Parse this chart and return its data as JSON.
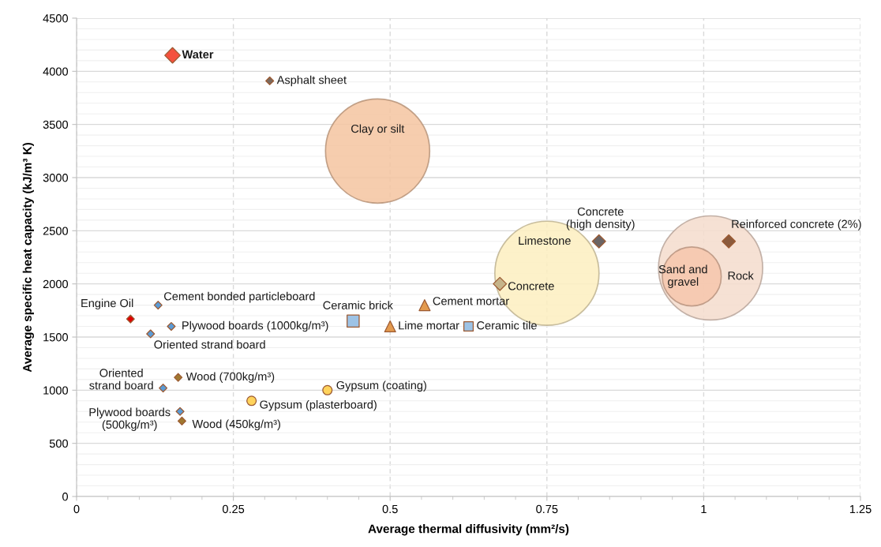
{
  "chart_data": {
    "type": "scatter",
    "xlabel": "Average thermal diffusivity (mm²/s)",
    "ylabel": "Average specific heat capacity (kJ/m³ K)",
    "xlim": [
      0,
      1.25
    ],
    "xticks": [
      0,
      0.25,
      0.5,
      0.75,
      1,
      1.25
    ],
    "ylim": [
      0,
      4500
    ],
    "yticks": [
      0,
      500,
      1000,
      1500,
      2000,
      2500,
      3000,
      3500,
      4000,
      4500
    ],
    "grid": true,
    "legend": false,
    "series": [
      {
        "name": "Water",
        "marker": "diamond",
        "color": "#f4513e",
        "x": [
          0.153
        ],
        "values": [
          4150
        ]
      },
      {
        "name": "Asphalt sheet",
        "marker": "diamond",
        "color": "#7a6a5f",
        "x": [
          0.308
        ],
        "values": [
          3910
        ]
      },
      {
        "name": "Clay or silt",
        "type": "bubble",
        "color": "#f4c4a0",
        "x": [
          0.48
        ],
        "values": [
          3250
        ],
        "sizes": [
          1
        ]
      },
      {
        "name": "Limestone",
        "type": "bubble",
        "color": "#fdefc0",
        "x": [
          0.75
        ],
        "values": [
          2100
        ],
        "sizes": [
          1
        ]
      },
      {
        "name": "Rock",
        "type": "bubble",
        "color": "#f5dccd",
        "x": [
          1.011
        ],
        "values": [
          2150
        ],
        "sizes": [
          1
        ]
      },
      {
        "name": "Sand and\ngravel",
        "type": "bubble",
        "color": "#f6c6ab",
        "x": [
          0.981
        ],
        "values": [
          2070
        ],
        "sizes": [
          0.32
        ]
      },
      {
        "name": "Concrete\n(high density)",
        "marker": "diamond",
        "color": "#6b6464",
        "x": [
          0.833
        ],
        "values": [
          2400
        ]
      },
      {
        "name": "Reinforced concrete (2%)",
        "marker": "diamond",
        "color": "#8b5a3c",
        "x": [
          1.04
        ],
        "values": [
          2400
        ]
      },
      {
        "name": "Concrete",
        "marker": "diamond",
        "color": "#c6b48a",
        "x": [
          0.675
        ],
        "values": [
          2000
        ]
      },
      {
        "name": "Cement mortar",
        "marker": "triangle",
        "color": "#e39a4f",
        "x": [
          0.555
        ],
        "values": [
          1800
        ]
      },
      {
        "name": "Lime mortar",
        "marker": "triangle",
        "color": "#e39a4f",
        "x": [
          0.5
        ],
        "values": [
          1600
        ]
      },
      {
        "name": "Ceramic tile",
        "marker": "square",
        "color": "#9dc3e6",
        "x": [
          0.625
        ],
        "values": [
          1600
        ]
      },
      {
        "name": "Ceramic brick",
        "marker": "square",
        "color": "#9dc3e6",
        "x": [
          0.441
        ],
        "values": [
          1650
        ]
      },
      {
        "name": "Gypsum (coating)",
        "marker": "circle",
        "color": "#ffd35c",
        "x": [
          0.4
        ],
        "values": [
          1000
        ]
      },
      {
        "name": "Gypsum (plasterboard)",
        "marker": "circle",
        "color": "#ffd35c",
        "x": [
          0.279
        ],
        "values": [
          900
        ]
      },
      {
        "name": "Engine Oil",
        "marker": "diamond",
        "color": "#e00000",
        "x": [
          0.086
        ],
        "values": [
          1670
        ]
      },
      {
        "name": "Cement bonded particleboard",
        "marker": "diamond",
        "color": "#5b9bd5",
        "x": [
          0.13
        ],
        "values": [
          1800
        ]
      },
      {
        "name": "Plywood boards (1000kg/m³)",
        "marker": "diamond",
        "color": "#5b9bd5",
        "x": [
          0.151
        ],
        "values": [
          1600
        ]
      },
      {
        "name": "Oriented strand board",
        "marker": "diamond",
        "color": "#5b9bd5",
        "x": [
          0.118
        ],
        "values": [
          1530
        ]
      },
      {
        "name": "Wood (700kg/m³)",
        "marker": "diamond",
        "color": "#a07830",
        "x": [
          0.162
        ],
        "values": [
          1120
        ]
      },
      {
        "name": "Oriented\nstrand board",
        "marker": "diamond",
        "color": "#5b9bd5",
        "x": [
          0.138
        ],
        "values": [
          1020
        ]
      },
      {
        "name": "Plywood boards\n(500kg/m³)",
        "marker": "diamond",
        "color": "#5b9bd5",
        "x": [
          0.165
        ],
        "values": [
          800
        ]
      },
      {
        "name": "Wood (450kg/m³)",
        "marker": "diamond",
        "color": "#a07830",
        "x": [
          0.168
        ],
        "values": [
          710
        ]
      }
    ]
  }
}
